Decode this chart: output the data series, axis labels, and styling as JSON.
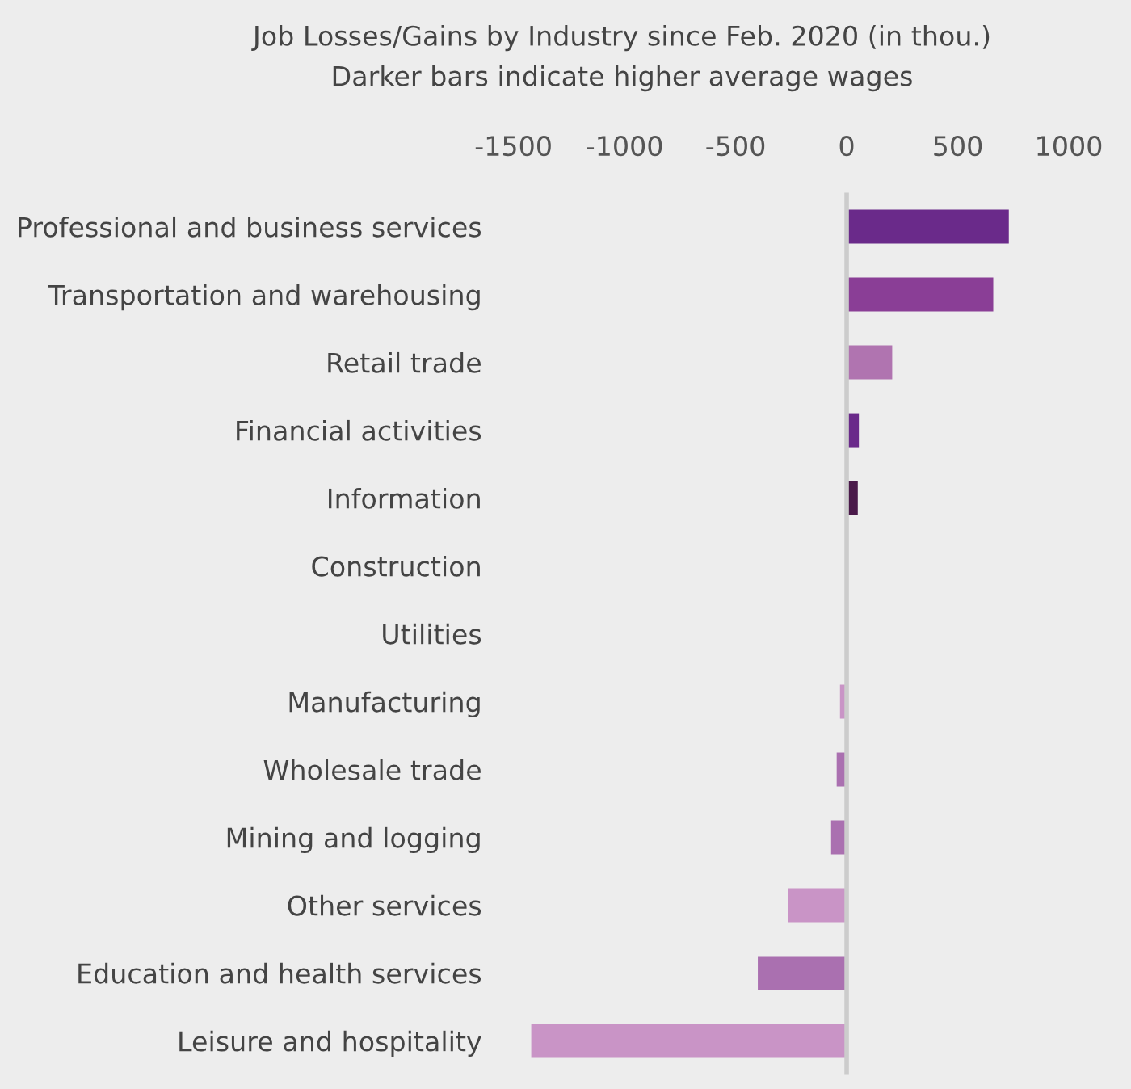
{
  "chart_data": {
    "type": "bar",
    "orientation": "horizontal",
    "title": "Job Losses/Gains by Industry since Feb. 2020 (in thou.)",
    "subtitle": "Darker bars indicate higher average wages",
    "categories": [
      "Professional and business services",
      "Transportation and warehousing",
      "Retail trade",
      "Financial activities",
      "Information",
      "Construction",
      "Utilities",
      "Manufacturing",
      "Wholesale trade",
      "Mining and logging",
      "Other services",
      "Education and health services",
      "Leisure and hospitality"
    ],
    "values": [
      730,
      660,
      205,
      55,
      50,
      0,
      0,
      -30,
      -45,
      -70,
      -265,
      -400,
      -1420
    ],
    "colors": [
      "#6a2a8a",
      "#8a3e96",
      "#b074b0",
      "#6a2a8a",
      "#4a1a4a",
      "#aa70b0",
      "#aa70b0",
      "#c994c6",
      "#aa70b0",
      "#aa70b0",
      "#c994c6",
      "#aa70b0",
      "#c994c6"
    ],
    "xlim": [
      -1500,
      1000
    ],
    "ref_lines": [
      {
        "axis": "x",
        "value": 0,
        "color": "#cccccc"
      }
    ],
    "xticks": [
      -1500,
      -1000,
      -500,
      0,
      500,
      1000
    ],
    "grid": false,
    "legend": false
  }
}
